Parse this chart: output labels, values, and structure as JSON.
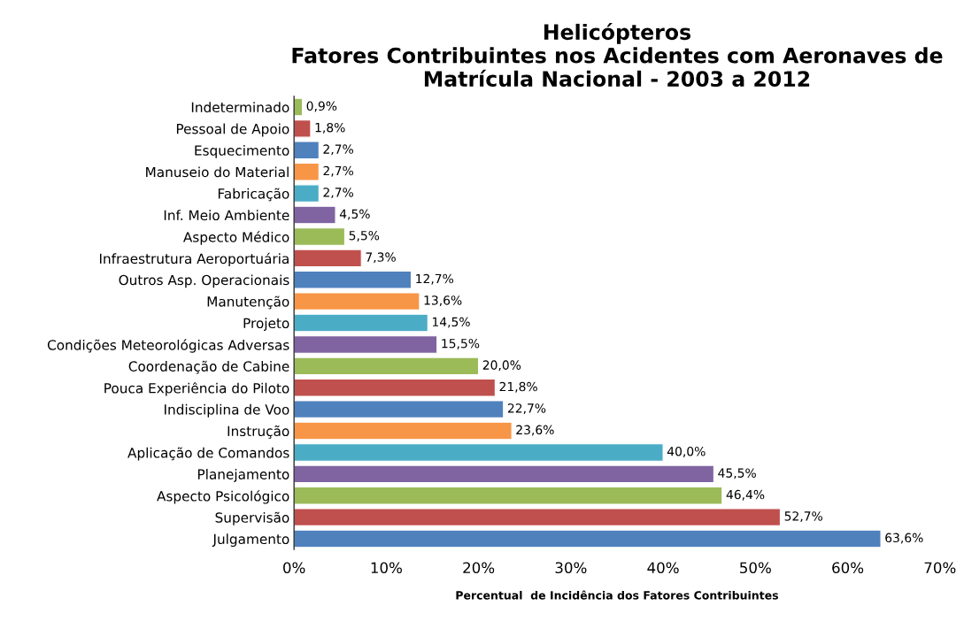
{
  "chart_data": {
    "type": "bar",
    "orientation": "horizontal",
    "title": "Helicópteros\nFatores Contribuintes nos Acidentes com Aeronaves de\nMatrícula Nacional - 2003 a 2012",
    "xlabel": "Percentual  de Incidência dos Fatores Contribuintes",
    "categories": [
      "Indeterminado",
      "Pessoal de Apoio",
      "Esquecimento",
      "Manuseio do Material",
      "Fabricação",
      "Inf. Meio Ambiente",
      "Aspecto Médico",
      "Infraestrutura Aeroportuária",
      "Outros Asp. Operacionais",
      "Manutenção",
      "Projeto",
      "Condições Meteorológicas Adversas",
      "Coordenação de Cabine",
      "Pouca Experiência do Piloto",
      "Indisciplina de Voo",
      "Instrução",
      "Aplicação de Comandos",
      "Planejamento",
      "Aspecto Psicológico",
      "Supervisão",
      "Julgamento"
    ],
    "values": [
      0.9,
      1.8,
      2.7,
      2.7,
      2.7,
      4.5,
      5.5,
      7.3,
      12.7,
      13.6,
      14.5,
      15.5,
      20.0,
      21.8,
      22.7,
      23.6,
      40.0,
      45.5,
      46.4,
      52.7,
      63.6
    ],
    "value_labels": [
      "0,9%",
      "1,8%",
      "2,7%",
      "2,7%",
      "2,7%",
      "4,5%",
      "5,5%",
      "7,3%",
      "12,7%",
      "13,6%",
      "14,5%",
      "15,5%",
      "20,0%",
      "21,8%",
      "22,7%",
      "23,6%",
      "40,0%",
      "45,5%",
      "46,4%",
      "52,7%",
      "63,6%"
    ],
    "colors": [
      "#9bbb59",
      "#c0504d",
      "#4f81bd",
      "#f79646",
      "#4bacc6",
      "#8064a2",
      "#9bbb59",
      "#c0504d",
      "#4f81bd",
      "#f79646",
      "#4bacc6",
      "#8064a2",
      "#9bbb59",
      "#c0504d",
      "#4f81bd",
      "#f79646",
      "#4bacc6",
      "#8064a2",
      "#9bbb59",
      "#c0504d",
      "#4f81bd"
    ],
    "xlim": [
      0,
      70
    ],
    "xticks": [
      {
        "value": 0,
        "label": "0%"
      },
      {
        "value": 10,
        "label": "10%"
      },
      {
        "value": 20,
        "label": "20%"
      },
      {
        "value": 30,
        "label": "30%"
      },
      {
        "value": 40,
        "label": "40%"
      },
      {
        "value": 50,
        "label": "50%"
      },
      {
        "value": 60,
        "label": "60%"
      },
      {
        "value": 70,
        "label": "70%"
      }
    ],
    "grid": false,
    "legend": false
  }
}
